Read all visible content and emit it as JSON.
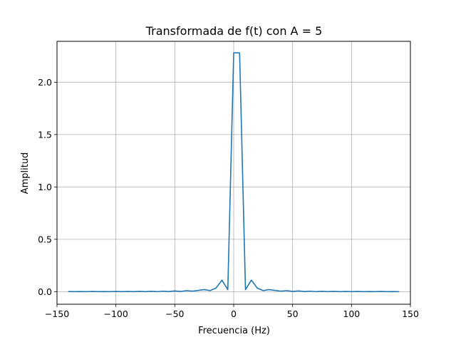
{
  "chart_data": {
    "type": "line",
    "title": "Transformada de f(t) con A = 5",
    "xlabel": "Frecuencia (Hz)",
    "ylabel": "Amplitud",
    "xlim": [
      -150,
      150
    ],
    "ylim": [
      -0.12,
      2.39
    ],
    "xticks": [
      -150,
      -100,
      -50,
      0,
      50,
      100,
      150
    ],
    "xtick_labels": [
      "−150",
      "−100",
      "−50",
      "0",
      "50",
      "100",
      "150"
    ],
    "yticks": [
      0.0,
      0.5,
      1.0,
      1.5,
      2.0
    ],
    "ytick_labels": [
      "0.0",
      "0.5",
      "1.0",
      "1.5",
      "2.0"
    ],
    "grid": true,
    "line_color": "#1f77b4",
    "series": [
      {
        "x": [
          -140,
          -135,
          -130,
          -125,
          -120,
          -115,
          -110,
          -105,
          -100,
          -95,
          -90,
          -85,
          -80,
          -75,
          -70,
          -65,
          -60,
          -55,
          -50,
          -45,
          -40,
          -35,
          -30,
          -25,
          -20,
          -15,
          -10,
          -5,
          0,
          5,
          10,
          15,
          20,
          25,
          30,
          35,
          40,
          45,
          50,
          55,
          60,
          65,
          70,
          75,
          80,
          85,
          90,
          95,
          100,
          105,
          110,
          115,
          120,
          125,
          130,
          135,
          140
        ],
        "y": [
          0.001,
          0.0,
          0.001,
          0.0,
          0.002,
          0.0,
          0.001,
          0.0,
          0.002,
          0.0,
          0.002,
          0.0,
          0.003,
          0.0,
          0.004,
          0.0,
          0.005,
          0.001,
          0.007,
          0.002,
          0.01,
          0.005,
          0.012,
          0.02,
          0.01,
          0.035,
          0.11,
          0.02,
          2.28,
          2.28,
          0.02,
          0.11,
          0.035,
          0.01,
          0.02,
          0.012,
          0.005,
          0.01,
          0.002,
          0.007,
          0.001,
          0.005,
          0.0,
          0.004,
          0.0,
          0.003,
          0.0,
          0.002,
          0.0,
          0.002,
          0.0,
          0.001,
          0.0,
          0.002,
          0.0,
          0.001,
          0.0
        ]
      }
    ]
  }
}
